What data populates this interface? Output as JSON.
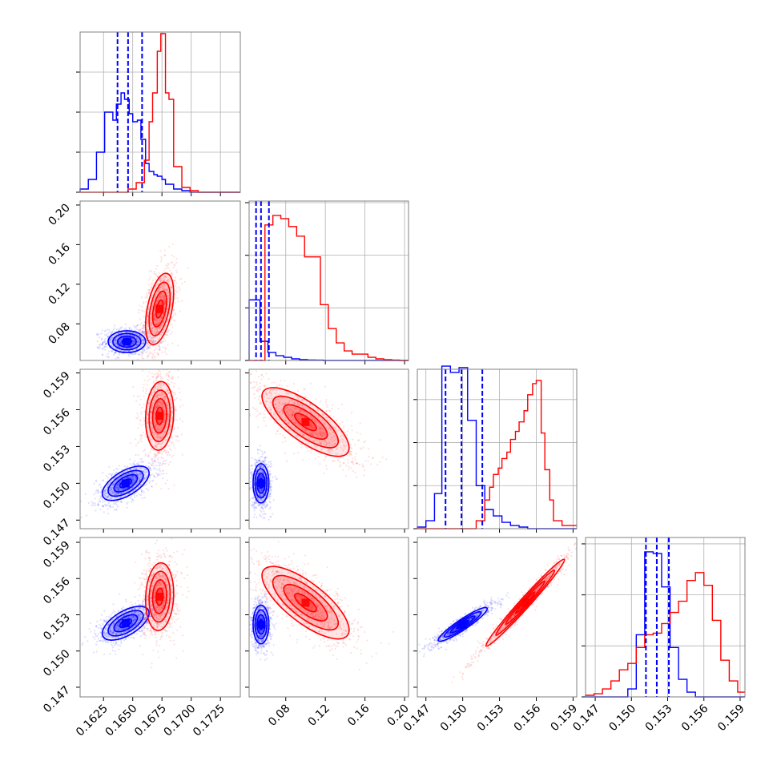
{
  "chart_data": {
    "type": "corner",
    "title": "",
    "colors": {
      "series_a": "#0000ff",
      "series_b": "#ff0000"
    },
    "series": [
      {
        "name": "blue",
        "color": "#0000ff"
      },
      {
        "name": "red",
        "color": "#ff0000"
      }
    ],
    "parameters": [
      {
        "id": "p1",
        "label": "",
        "range": [
          0.1605,
          0.1742
        ],
        "ticks": [
          "0.1625",
          "0.1650",
          "0.1675",
          "0.1700",
          "0.1725"
        ],
        "tick_values": [
          0.1625,
          0.165,
          0.1675,
          0.17,
          0.1725
        ]
      },
      {
        "id": "p2",
        "label": "",
        "range": [
          0.043,
          0.204
        ],
        "ticks": [
          "0.08",
          "0.12",
          "0.16",
          "0.20"
        ],
        "tick_values": [
          0.08,
          0.12,
          0.16,
          0.2
        ]
      },
      {
        "id": "p3",
        "label": "",
        "range": [
          0.1463,
          0.1593
        ],
        "ticks": [
          "0.147",
          "0.150",
          "0.153",
          "0.156",
          "0.159"
        ],
        "tick_values": [
          0.147,
          0.15,
          0.153,
          0.156,
          0.159
        ]
      },
      {
        "id": "p4",
        "label": "",
        "range": [
          0.1462,
          0.1594
        ],
        "ticks": [
          "0.147",
          "0.150",
          "0.153",
          "0.156",
          "0.159"
        ],
        "tick_values": [
          0.147,
          0.15,
          0.153,
          0.156,
          0.159
        ]
      }
    ],
    "histograms": [
      {
        "param": "p1",
        "ymax": 1.0,
        "grid_levels": [
          0.25,
          0.5,
          0.75
        ],
        "quantiles_blue": [
          0.1637,
          0.1646,
          0.1658
        ],
        "series": [
          {
            "name": "blue",
            "edges": [
              0.1605,
              0.1612,
              0.1619,
              0.1626,
              0.1633,
              0.1636,
              0.164,
              0.1643,
              0.1647,
              0.165,
              0.1654,
              0.1657,
              0.1661,
              0.1664,
              0.1668,
              0.1671,
              0.1675,
              0.1678,
              0.1685,
              0.1692,
              0.1699,
              0.1742
            ],
            "values": [
              0.02,
              0.08,
              0.25,
              0.5,
              0.45,
              0.55,
              0.62,
              0.58,
              0.49,
              0.44,
              0.45,
              0.33,
              0.18,
              0.13,
              0.11,
              0.1,
              0.08,
              0.05,
              0.02,
              0.01,
              0.0
            ]
          },
          {
            "name": "red",
            "edges": [
              0.1605,
              0.1646,
              0.1653,
              0.166,
              0.1664,
              0.1667,
              0.1671,
              0.1674,
              0.1678,
              0.1681,
              0.1685,
              0.1692,
              0.1699,
              0.1706,
              0.1742
            ],
            "values": [
              0.0,
              0.02,
              0.06,
              0.2,
              0.44,
              0.62,
              0.88,
              0.99,
              0.62,
              0.58,
              0.16,
              0.03,
              0.01,
              0.0
            ]
          }
        ]
      },
      {
        "param": "p2",
        "ymax": 1.0,
        "grid_levels": [
          0.33,
          0.66,
          0.99
        ],
        "quantiles_blue": [
          0.05,
          0.055,
          0.063
        ],
        "series": [
          {
            "name": "blue",
            "edges": [
              0.043,
              0.054,
              0.062,
              0.07,
              0.078,
              0.086,
              0.094,
              0.102,
              0.11,
              0.118,
              0.204
            ],
            "values": [
              0.38,
              0.12,
              0.05,
              0.03,
              0.02,
              0.01,
              0.005,
              0.003,
              0.002,
              0.0
            ]
          },
          {
            "name": "red",
            "edges": [
              0.043,
              0.059,
              0.067,
              0.075,
              0.083,
              0.091,
              0.099,
              0.107,
              0.115,
              0.123,
              0.131,
              0.139,
              0.147,
              0.155,
              0.163,
              0.171,
              0.179,
              0.187,
              0.195,
              0.204
            ],
            "values": [
              0.0,
              0.85,
              0.91,
              0.89,
              0.84,
              0.78,
              0.65,
              0.65,
              0.35,
              0.2,
              0.11,
              0.06,
              0.04,
              0.04,
              0.02,
              0.01,
              0.005,
              0.003,
              0.0
            ]
          }
        ]
      },
      {
        "param": "p3",
        "ymax": 1.0,
        "grid_levels": [
          0.27,
          0.54,
          0.81
        ],
        "quantiles_blue": [
          0.1486,
          0.1499,
          0.1516
        ],
        "series": [
          {
            "name": "blue",
            "edges": [
              0.1463,
              0.147,
              0.1477,
              0.1483,
              0.149,
              0.1497,
              0.1504,
              0.1511,
              0.1518,
              0.1525,
              0.1532,
              0.1539,
              0.1546,
              0.1553,
              0.1593
            ],
            "values": [
              0.01,
              0.05,
              0.22,
              1.02,
              0.98,
              1.01,
              0.68,
              0.27,
              0.12,
              0.08,
              0.04,
              0.02,
              0.01,
              0.0
            ]
          },
          {
            "name": "red",
            "edges": [
              0.1463,
              0.1511,
              0.1518,
              0.1522,
              0.1525,
              0.1529,
              0.1532,
              0.1536,
              0.1539,
              0.1543,
              0.1546,
              0.155,
              0.1553,
              0.1557,
              0.156,
              0.1564,
              0.1567,
              0.1571,
              0.1574,
              0.1581,
              0.1593
            ],
            "values": [
              0.0,
              0.05,
              0.18,
              0.26,
              0.34,
              0.38,
              0.44,
              0.48,
              0.56,
              0.61,
              0.67,
              0.74,
              0.84,
              0.91,
              0.93,
              0.6,
              0.37,
              0.18,
              0.05,
              0.02
            ]
          }
        ]
      },
      {
        "param": "p4",
        "ymax": 1.0,
        "grid_levels": [
          0.32,
          0.64,
          0.96
        ],
        "quantiles_blue": [
          0.1512,
          0.1521,
          0.1531
        ],
        "series": [
          {
            "name": "blue",
            "edges": [
              0.1462,
              0.1497,
              0.1504,
              0.1511,
              0.1518,
              0.1525,
              0.1532,
              0.1539,
              0.1546,
              0.1553,
              0.1594
            ],
            "values": [
              0.0,
              0.05,
              0.39,
              0.91,
              0.9,
              0.69,
              0.31,
              0.11,
              0.03,
              0.0
            ]
          },
          {
            "name": "red",
            "edges": [
              0.1462,
              0.1469,
              0.1476,
              0.1483,
              0.149,
              0.1497,
              0.1504,
              0.1511,
              0.1518,
              0.1525,
              0.1532,
              0.1539,
              0.1546,
              0.1553,
              0.156,
              0.1567,
              0.1574,
              0.1581,
              0.1588,
              0.1594
            ],
            "values": [
              0.01,
              0.02,
              0.05,
              0.1,
              0.17,
              0.21,
              0.31,
              0.39,
              0.4,
              0.46,
              0.53,
              0.6,
              0.73,
              0.78,
              0.7,
              0.48,
              0.23,
              0.1,
              0.03
            ]
          }
        ]
      }
    ],
    "pairs": [
      {
        "x": "p1",
        "y": "p2",
        "blue": {
          "center": [
            0.1645,
            0.062
          ],
          "sd": [
            0.0008,
            0.0055
          ],
          "rho": 0.0
        },
        "red": {
          "center": [
            0.1673,
            0.095
          ],
          "sd": [
            0.0006,
            0.018
          ],
          "rho": 0.45
        }
      },
      {
        "x": "p1",
        "y": "p3",
        "blue": {
          "center": [
            0.1644,
            0.15
          ],
          "sd": [
            0.001,
            0.0007
          ],
          "rho": 0.6
        },
        "red": {
          "center": [
            0.1673,
            0.1555
          ],
          "sd": [
            0.0006,
            0.0014
          ],
          "rho": 0.1
        }
      },
      {
        "x": "p2",
        "y": "p3",
        "blue": {
          "center": [
            0.055,
            0.15
          ],
          "sd": [
            0.004,
            0.0008
          ],
          "rho": 0.0
        },
        "red": {
          "center": [
            0.1,
            0.155
          ],
          "sd": [
            0.022,
            0.0014
          ],
          "rho": -0.75
        }
      },
      {
        "x": "p1",
        "y": "p4",
        "blue": {
          "center": [
            0.1644,
            0.1523
          ],
          "sd": [
            0.001,
            0.0007
          ],
          "rho": 0.6
        },
        "red": {
          "center": [
            0.1673,
            0.1545
          ],
          "sd": [
            0.0006,
            0.0014
          ],
          "rho": 0.1
        }
      },
      {
        "x": "p2",
        "y": "p4",
        "blue": {
          "center": [
            0.055,
            0.1522
          ],
          "sd": [
            0.004,
            0.0008
          ],
          "rho": 0.0
        },
        "red": {
          "center": [
            0.1,
            0.154
          ],
          "sd": [
            0.022,
            0.0015
          ],
          "rho": -0.75
        }
      },
      {
        "x": "p3",
        "y": "p4",
        "blue": {
          "center": [
            0.15,
            0.1522
          ],
          "sd": [
            0.001,
            0.0007
          ],
          "rho": 0.93
        },
        "red": {
          "center": [
            0.1551,
            0.154
          ],
          "sd": [
            0.0016,
            0.0018
          ],
          "rho": 0.985
        }
      }
    ],
    "contour_levels_sigma": [
      0.5,
      1.0,
      1.5,
      2.0
    ]
  }
}
